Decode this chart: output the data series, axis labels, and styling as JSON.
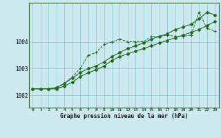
{
  "title": "Graphe pression niveau de la mer (hPa)",
  "background_color": "#cce9f0",
  "line_color": "#1e6b1e",
  "xlim": [
    -0.5,
    23.5
  ],
  "ylim": [
    1001.55,
    1005.45
  ],
  "yticks": [
    1002,
    1003,
    1004
  ],
  "ytick_labels": [
    "1002",
    "1003",
    "1004"
  ],
  "xticks": [
    0,
    1,
    2,
    3,
    4,
    5,
    6,
    7,
    8,
    9,
    10,
    11,
    12,
    13,
    14,
    15,
    16,
    17,
    18,
    19,
    20,
    21,
    22,
    23
  ],
  "series1_x": [
    0,
    1,
    2,
    3,
    4,
    5,
    6,
    7,
    8,
    9,
    10,
    11,
    12,
    13,
    14,
    15,
    16,
    17,
    18,
    19,
    20,
    21,
    22,
    23
  ],
  "series1_y": [
    1002.25,
    1002.25,
    1002.25,
    1002.25,
    1002.45,
    1002.7,
    1003.0,
    1003.5,
    1003.6,
    1003.9,
    1004.0,
    1004.1,
    1004.0,
    1004.0,
    1004.0,
    1004.2,
    1004.2,
    1004.25,
    1004.2,
    1004.2,
    1004.25,
    1005.1,
    1004.5,
    1004.4
  ],
  "series2_x": [
    0,
    1,
    2,
    3,
    4,
    5,
    6,
    7,
    8,
    9,
    10,
    11,
    12,
    13,
    14,
    15,
    16,
    17,
    18,
    19,
    20,
    21,
    22,
    23
  ],
  "series2_y": [
    1002.25,
    1002.25,
    1002.25,
    1002.3,
    1002.45,
    1002.65,
    1002.85,
    1003.0,
    1003.1,
    1003.25,
    1003.45,
    1003.6,
    1003.75,
    1003.85,
    1003.95,
    1004.1,
    1004.2,
    1004.3,
    1004.45,
    1004.55,
    1004.65,
    1004.85,
    1005.1,
    1005.0
  ],
  "series3_x": [
    0,
    1,
    2,
    3,
    4,
    5,
    6,
    7,
    8,
    9,
    10,
    11,
    12,
    13,
    14,
    15,
    16,
    17,
    18,
    19,
    20,
    21,
    22,
    23
  ],
  "series3_y": [
    1002.25,
    1002.25,
    1002.25,
    1002.25,
    1002.35,
    1002.5,
    1002.7,
    1002.85,
    1002.95,
    1003.1,
    1003.3,
    1003.45,
    1003.55,
    1003.65,
    1003.75,
    1003.85,
    1003.95,
    1004.05,
    1004.15,
    1004.25,
    1004.35,
    1004.45,
    1004.6,
    1004.75
  ]
}
